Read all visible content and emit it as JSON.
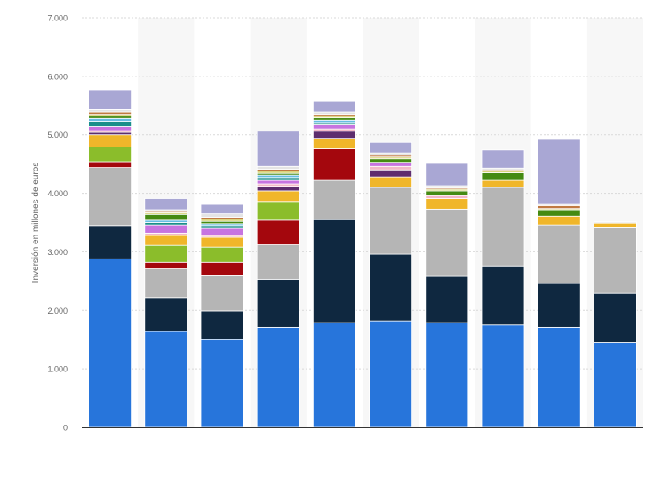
{
  "chart_data": {
    "type": "bar",
    "stacked": true,
    "ylabel": "Inversión en millones de euros",
    "ylim": [
      0,
      7000
    ],
    "yticks": [
      0,
      1000,
      2000,
      3000,
      4000,
      5000,
      6000,
      7000
    ],
    "ytick_labels": [
      "0",
      "1.000",
      "2.000",
      "3.000",
      "4.000",
      "5.000",
      "6.000",
      "7.000"
    ],
    "grid": true,
    "categories": [
      "",
      "",
      "",
      "",
      "",
      "",
      "",
      "",
      "",
      ""
    ],
    "colors": {
      "s1": "#2775db",
      "s2": "#0f2840",
      "s3": "#b5b5b5",
      "s4": "#a4070d",
      "s5": "#8bbd2b",
      "s6": "#f0b62a",
      "s7": "#5e2d6e",
      "s8": "#f3b8c8",
      "s9": "#c774e0",
      "s10": "#1a8f8a",
      "s11": "#68bde3",
      "s12": "#458a12",
      "s13": "#d9d47c",
      "s14": "#c07a42",
      "s15": "#e4e4e4",
      "s16": "#a9a7d4"
    },
    "series": [
      {
        "key": "s1",
        "values": [
          2880,
          1640,
          1500,
          1710,
          1790,
          1820,
          1790,
          1750,
          1710,
          1450
        ]
      },
      {
        "key": "s2",
        "values": [
          570,
          580,
          490,
          820,
          1760,
          1140,
          790,
          1010,
          750,
          840
        ]
      },
      {
        "key": "s3",
        "values": [
          990,
          490,
          600,
          590,
          670,
          1140,
          1150,
          1340,
          1000,
          1120
        ]
      },
      {
        "key": "s4",
        "values": [
          100,
          110,
          230,
          420,
          540,
          0,
          0,
          0,
          0,
          0
        ]
      },
      {
        "key": "s5",
        "values": [
          250,
          290,
          260,
          320,
          0,
          0,
          0,
          0,
          0,
          0
        ]
      },
      {
        "key": "s6",
        "values": [
          210,
          170,
          170,
          180,
          180,
          180,
          180,
          120,
          150,
          80
        ]
      },
      {
        "key": "s7",
        "values": [
          40,
          0,
          0,
          80,
          120,
          120,
          0,
          0,
          0,
          0
        ]
      },
      {
        "key": "s8",
        "values": [
          30,
          40,
          30,
          40,
          40,
          60,
          50,
          0,
          0,
          0
        ]
      },
      {
        "key": "s9",
        "values": [
          70,
          140,
          120,
          60,
          70,
          70,
          0,
          0,
          0,
          0
        ]
      },
      {
        "key": "s10",
        "values": [
          90,
          40,
          50,
          50,
          40,
          0,
          0,
          0,
          0,
          0
        ]
      },
      {
        "key": "s11",
        "values": [
          50,
          40,
          30,
          40,
          40,
          0,
          0,
          0,
          0,
          0
        ]
      },
      {
        "key": "s12",
        "values": [
          40,
          100,
          40,
          30,
          40,
          60,
          80,
          130,
          110,
          0
        ]
      },
      {
        "key": "s13",
        "values": [
          30,
          30,
          40,
          40,
          30,
          30,
          30,
          30,
          20,
          0
        ]
      },
      {
        "key": "s14",
        "values": [
          40,
          20,
          30,
          30,
          30,
          30,
          20,
          20,
          50,
          0
        ]
      },
      {
        "key": "s15",
        "values": [
          40,
          30,
          60,
          50,
          40,
          40,
          40,
          30,
          20,
          20
        ]
      },
      {
        "key": "s16",
        "values": [
          340,
          190,
          160,
          600,
          180,
          180,
          380,
          310,
          1110,
          0
        ]
      }
    ]
  }
}
